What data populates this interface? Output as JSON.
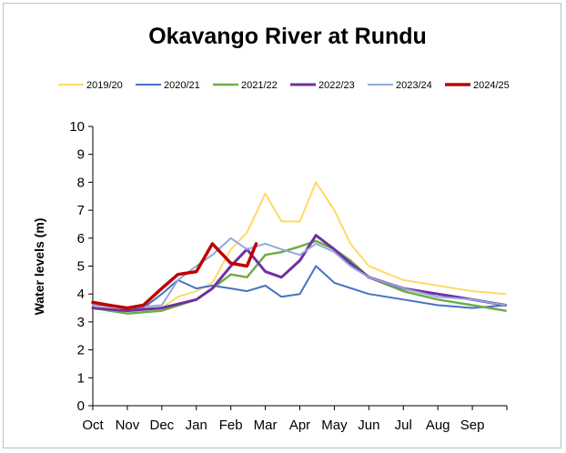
{
  "chart_data": {
    "type": "line",
    "title": "Okavango River at Rundu",
    "xlabel": "",
    "ylabel": "Water levels (m)",
    "ylim": [
      0,
      10
    ],
    "yticks": [
      0,
      1,
      2,
      3,
      4,
      5,
      6,
      7,
      8,
      9,
      10
    ],
    "x_tick_labels": [
      "Oct",
      "Nov",
      "Dec",
      "Jan",
      "Feb",
      "Mar",
      "Apr",
      "May",
      "Jun",
      "Jul",
      "Aug",
      "Sep"
    ],
    "grid": false,
    "legend_position": "top",
    "series": [
      {
        "name": "2019/20",
        "color": "#ffd966",
        "width": 2,
        "points": [
          [
            "Oct",
            3.7
          ],
          [
            "Nov",
            3.5
          ],
          [
            "Dec",
            3.5
          ],
          [
            "Dec 15",
            3.9
          ],
          [
            "Jan",
            4.1
          ],
          [
            "Jan 15",
            4.4
          ],
          [
            "Feb",
            5.6
          ],
          [
            "Feb 15",
            6.2
          ],
          [
            "Mar",
            7.6
          ],
          [
            "Mar 15",
            6.6
          ],
          [
            "Apr",
            6.6
          ],
          [
            "Apr 15",
            8.0
          ],
          [
            "May",
            7.0
          ],
          [
            "May 15",
            5.8
          ],
          [
            "Jun",
            5.0
          ],
          [
            "Jul",
            4.5
          ],
          [
            "Aug",
            4.3
          ],
          [
            "Sep",
            4.1
          ],
          [
            "Sep 30",
            4.0
          ]
        ]
      },
      {
        "name": "2020/21",
        "color": "#4472c4",
        "width": 2,
        "points": [
          [
            "Oct",
            3.7
          ],
          [
            "Oct 15",
            3.6
          ],
          [
            "Nov",
            3.5
          ],
          [
            "Nov 15",
            3.5
          ],
          [
            "Dec",
            4.0
          ],
          [
            "Dec 15",
            4.5
          ],
          [
            "Jan",
            4.2
          ],
          [
            "Jan 15",
            4.3
          ],
          [
            "Feb",
            4.2
          ],
          [
            "Feb 15",
            4.1
          ],
          [
            "Mar",
            4.3
          ],
          [
            "Mar 15",
            3.9
          ],
          [
            "Apr",
            4.0
          ],
          [
            "Apr 15",
            5.0
          ],
          [
            "May",
            4.4
          ],
          [
            "Jun",
            4.0
          ],
          [
            "Jul",
            3.8
          ],
          [
            "Aug",
            3.6
          ],
          [
            "Sep",
            3.5
          ],
          [
            "Sep 30",
            3.6
          ]
        ]
      },
      {
        "name": "2021/22",
        "color": "#70ad47",
        "width": 2.5,
        "points": [
          [
            "Oct",
            3.5
          ],
          [
            "Nov",
            3.3
          ],
          [
            "Dec",
            3.4
          ],
          [
            "Jan",
            3.8
          ],
          [
            "Jan 15",
            4.2
          ],
          [
            "Feb",
            4.7
          ],
          [
            "Feb 15",
            4.6
          ],
          [
            "Mar",
            5.4
          ],
          [
            "Mar 15",
            5.5
          ],
          [
            "Apr",
            5.7
          ],
          [
            "Apr 15",
            5.9
          ],
          [
            "May",
            5.6
          ],
          [
            "May 15",
            5.2
          ],
          [
            "Jun",
            4.6
          ],
          [
            "Jul",
            4.1
          ],
          [
            "Aug",
            3.8
          ],
          [
            "Sep",
            3.6
          ],
          [
            "Sep 30",
            3.4
          ]
        ]
      },
      {
        "name": "2022/23",
        "color": "#7030a0",
        "width": 3,
        "points": [
          [
            "Oct",
            3.5
          ],
          [
            "Nov",
            3.4
          ],
          [
            "Dec",
            3.5
          ],
          [
            "Jan",
            3.8
          ],
          [
            "Jan 15",
            4.2
          ],
          [
            "Feb",
            5.0
          ],
          [
            "Feb 15",
            5.6
          ],
          [
            "Mar",
            4.8
          ],
          [
            "Mar 15",
            4.6
          ],
          [
            "Apr",
            5.2
          ],
          [
            "Apr 15",
            6.1
          ],
          [
            "May",
            5.6
          ],
          [
            "May 15",
            5.1
          ],
          [
            "Jun",
            4.6
          ],
          [
            "Jul",
            4.2
          ],
          [
            "Aug",
            4.0
          ],
          [
            "Sep",
            3.8
          ],
          [
            "Sep 30",
            3.6
          ]
        ]
      },
      {
        "name": "2023/24",
        "color": "#8faadc",
        "width": 2,
        "points": [
          [
            "Oct",
            3.6
          ],
          [
            "Nov",
            3.5
          ],
          [
            "Dec",
            3.6
          ],
          [
            "Dec 15",
            4.5
          ],
          [
            "Jan",
            5.0
          ],
          [
            "Jan 15",
            5.4
          ],
          [
            "Feb",
            6.0
          ],
          [
            "Feb 15",
            5.6
          ],
          [
            "Mar",
            5.8
          ],
          [
            "Mar 15",
            5.6
          ],
          [
            "Apr",
            5.4
          ],
          [
            "Apr 15",
            5.8
          ],
          [
            "May",
            5.5
          ],
          [
            "May 15",
            5.0
          ],
          [
            "Jun",
            4.6
          ],
          [
            "Jul",
            4.2
          ],
          [
            "Aug",
            3.9
          ],
          [
            "Sep",
            3.8
          ],
          [
            "Sep 30",
            3.6
          ]
        ]
      },
      {
        "name": "2024/25",
        "color": "#c00000",
        "width": 3.5,
        "points": [
          [
            "Oct",
            3.7
          ],
          [
            "Oct 15",
            3.6
          ],
          [
            "Nov",
            3.5
          ],
          [
            "Nov 15",
            3.6
          ],
          [
            "Dec",
            4.2
          ],
          [
            "Dec 15",
            4.7
          ],
          [
            "Jan",
            4.8
          ],
          [
            "Jan 15",
            5.8
          ],
          [
            "Feb",
            5.1
          ],
          [
            "Feb 15",
            5.0
          ],
          [
            "Feb 23",
            5.8
          ]
        ]
      }
    ]
  }
}
